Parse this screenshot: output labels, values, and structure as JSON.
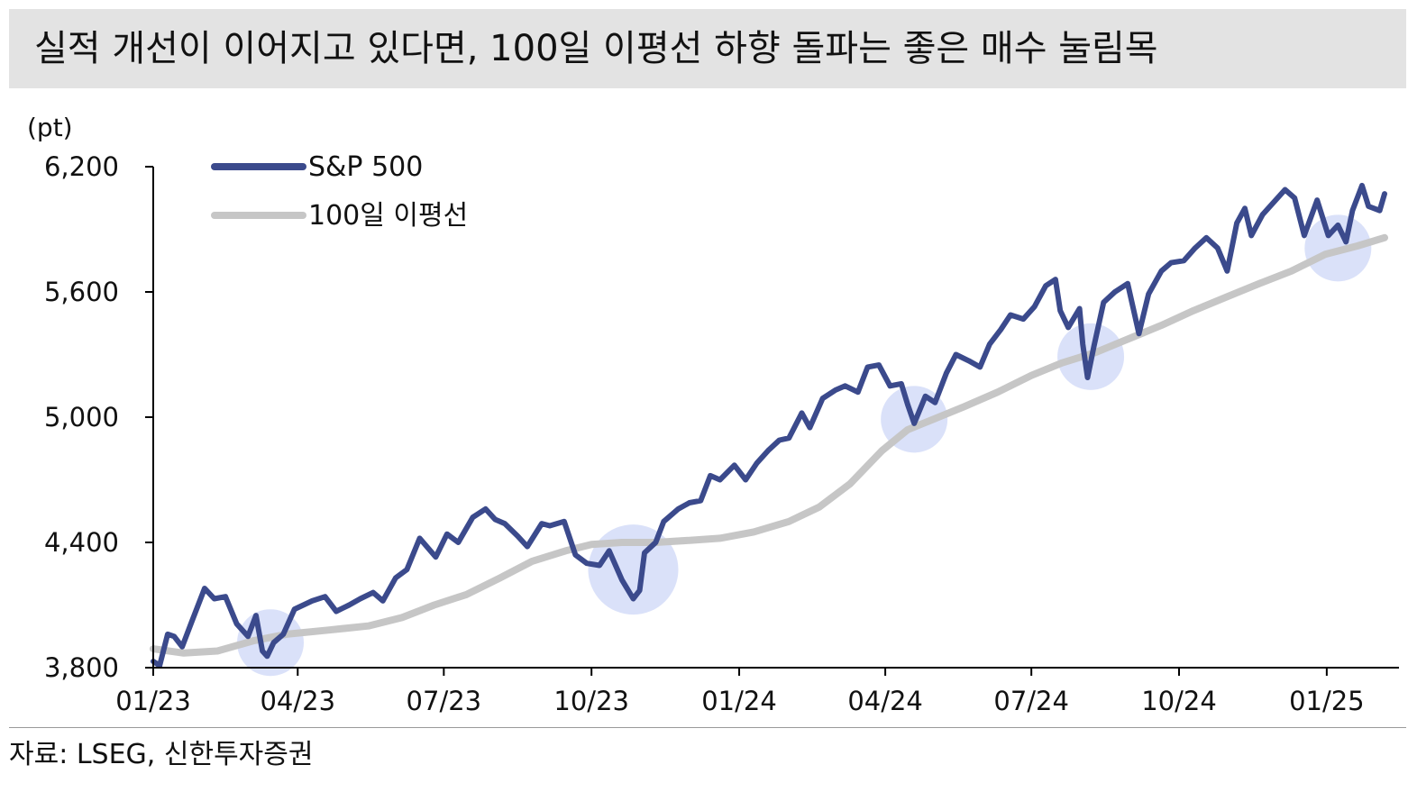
{
  "title": "실적 개선이 이어지고 있다면, 100일 이평선 하향 돌파는 좋은 매수 눌림목",
  "source": "자료: LSEG, 신한투자증권",
  "colors": {
    "sp500": "#3b4a8c",
    "ma100": "#c6c6c6",
    "highlight": "#d3dcf8",
    "axis": "#000000",
    "title_bg": "#e3e3e3"
  },
  "chart_data": {
    "type": "line",
    "ylabel": "(pt)",
    "ylim": [
      3800,
      6200
    ],
    "yticks": [
      3800,
      4400,
      5000,
      5600,
      6200
    ],
    "ytick_labels": [
      "3,800",
      "4,400",
      "5,000",
      "5,600",
      "6,200"
    ],
    "xlim": [
      "2023-01-01",
      "2025-02-15"
    ],
    "xticks": [
      "2023-01-01",
      "2023-04-01",
      "2023-07-01",
      "2023-10-01",
      "2024-01-01",
      "2024-04-01",
      "2024-07-01",
      "2024-10-01",
      "2025-01-01"
    ],
    "xtick_labels": [
      "01/23",
      "04/23",
      "07/23",
      "10/23",
      "01/24",
      "04/24",
      "07/24",
      "10/24",
      "01/25"
    ],
    "legend": {
      "position": "top-left",
      "entries": [
        "S&P 500",
        "100일 이평선"
      ]
    },
    "series": [
      {
        "name": "S&P 500",
        "color": "#3b4a8c",
        "points": [
          [
            "2023-01-01",
            3830
          ],
          [
            "2023-01-05",
            3810
          ],
          [
            "2023-01-10",
            3960
          ],
          [
            "2023-01-14",
            3950
          ],
          [
            "2023-01-19",
            3900
          ],
          [
            "2023-01-25",
            4020
          ],
          [
            "2023-02-02",
            4180
          ],
          [
            "2023-02-08",
            4130
          ],
          [
            "2023-02-15",
            4140
          ],
          [
            "2023-02-22",
            4010
          ],
          [
            "2023-03-01",
            3950
          ],
          [
            "2023-03-06",
            4050
          ],
          [
            "2023-03-10",
            3880
          ],
          [
            "2023-03-13",
            3855
          ],
          [
            "2023-03-17",
            3920
          ],
          [
            "2023-03-23",
            3960
          ],
          [
            "2023-03-30",
            4080
          ],
          [
            "2023-04-10",
            4120
          ],
          [
            "2023-04-18",
            4140
          ],
          [
            "2023-04-25",
            4070
          ],
          [
            "2023-05-03",
            4100
          ],
          [
            "2023-05-10",
            4130
          ],
          [
            "2023-05-18",
            4160
          ],
          [
            "2023-05-24",
            4120
          ],
          [
            "2023-06-01",
            4230
          ],
          [
            "2023-06-08",
            4270
          ],
          [
            "2023-06-16",
            4420
          ],
          [
            "2023-06-26",
            4330
          ],
          [
            "2023-07-03",
            4440
          ],
          [
            "2023-07-10",
            4400
          ],
          [
            "2023-07-19",
            4520
          ],
          [
            "2023-07-27",
            4560
          ],
          [
            "2023-08-02",
            4510
          ],
          [
            "2023-08-08",
            4490
          ],
          [
            "2023-08-16",
            4430
          ],
          [
            "2023-08-22",
            4380
          ],
          [
            "2023-08-31",
            4490
          ],
          [
            "2023-09-05",
            4480
          ],
          [
            "2023-09-14",
            4500
          ],
          [
            "2023-09-21",
            4340
          ],
          [
            "2023-09-28",
            4300
          ],
          [
            "2023-10-06",
            4290
          ],
          [
            "2023-10-12",
            4360
          ],
          [
            "2023-10-20",
            4220
          ],
          [
            "2023-10-27",
            4130
          ],
          [
            "2023-10-31",
            4170
          ],
          [
            "2023-11-03",
            4350
          ],
          [
            "2023-11-10",
            4400
          ],
          [
            "2023-11-15",
            4500
          ],
          [
            "2023-11-24",
            4560
          ],
          [
            "2023-12-01",
            4590
          ],
          [
            "2023-12-08",
            4600
          ],
          [
            "2023-12-14",
            4720
          ],
          [
            "2023-12-20",
            4700
          ],
          [
            "2023-12-29",
            4770
          ],
          [
            "2024-01-05",
            4700
          ],
          [
            "2024-01-12",
            4780
          ],
          [
            "2024-01-19",
            4840
          ],
          [
            "2024-01-26",
            4890
          ],
          [
            "2024-02-01",
            4900
          ],
          [
            "2024-02-09",
            5020
          ],
          [
            "2024-02-14",
            4950
          ],
          [
            "2024-02-22",
            5090
          ],
          [
            "2024-03-01",
            5130
          ],
          [
            "2024-03-07",
            5150
          ],
          [
            "2024-03-15",
            5120
          ],
          [
            "2024-03-21",
            5240
          ],
          [
            "2024-03-28",
            5250
          ],
          [
            "2024-04-04",
            5150
          ],
          [
            "2024-04-11",
            5160
          ],
          [
            "2024-04-15",
            5060
          ],
          [
            "2024-04-19",
            4970
          ],
          [
            "2024-04-26",
            5100
          ],
          [
            "2024-05-02",
            5070
          ],
          [
            "2024-05-09",
            5210
          ],
          [
            "2024-05-15",
            5300
          ],
          [
            "2024-05-23",
            5270
          ],
          [
            "2024-05-30",
            5240
          ],
          [
            "2024-06-05",
            5350
          ],
          [
            "2024-06-12",
            5420
          ],
          [
            "2024-06-18",
            5490
          ],
          [
            "2024-06-26",
            5470
          ],
          [
            "2024-07-03",
            5530
          ],
          [
            "2024-07-10",
            5630
          ],
          [
            "2024-07-16",
            5660
          ],
          [
            "2024-07-19",
            5510
          ],
          [
            "2024-07-24",
            5430
          ],
          [
            "2024-07-31",
            5520
          ],
          [
            "2024-08-02",
            5350
          ],
          [
            "2024-08-05",
            5190
          ],
          [
            "2024-08-09",
            5340
          ],
          [
            "2024-08-15",
            5550
          ],
          [
            "2024-08-22",
            5600
          ],
          [
            "2024-08-30",
            5640
          ],
          [
            "2024-09-06",
            5400
          ],
          [
            "2024-09-12",
            5590
          ],
          [
            "2024-09-20",
            5700
          ],
          [
            "2024-09-26",
            5740
          ],
          [
            "2024-10-04",
            5750
          ],
          [
            "2024-10-11",
            5810
          ],
          [
            "2024-10-18",
            5860
          ],
          [
            "2024-10-25",
            5810
          ],
          [
            "2024-10-31",
            5700
          ],
          [
            "2024-11-06",
            5930
          ],
          [
            "2024-11-11",
            6000
          ],
          [
            "2024-11-15",
            5870
          ],
          [
            "2024-11-22",
            5970
          ],
          [
            "2024-11-29",
            6030
          ],
          [
            "2024-12-06",
            6090
          ],
          [
            "2024-12-12",
            6050
          ],
          [
            "2024-12-18",
            5870
          ],
          [
            "2024-12-26",
            6040
          ],
          [
            "2025-01-02",
            5870
          ],
          [
            "2025-01-08",
            5920
          ],
          [
            "2025-01-13",
            5840
          ],
          [
            "2025-01-17",
            5990
          ],
          [
            "2025-01-23",
            6110
          ],
          [
            "2025-01-27",
            6010
          ],
          [
            "2025-02-03",
            5990
          ],
          [
            "2025-02-06",
            6070
          ]
        ]
      },
      {
        "name": "100일 이평선",
        "color": "#c6c6c6",
        "points": [
          [
            "2023-01-01",
            3890
          ],
          [
            "2023-01-20",
            3870
          ],
          [
            "2023-02-10",
            3880
          ],
          [
            "2023-03-05",
            3930
          ],
          [
            "2023-03-25",
            3960
          ],
          [
            "2023-04-20",
            3980
          ],
          [
            "2023-05-15",
            4000
          ],
          [
            "2023-06-05",
            4040
          ],
          [
            "2023-06-25",
            4100
          ],
          [
            "2023-07-15",
            4150
          ],
          [
            "2023-08-05",
            4230
          ],
          [
            "2023-08-25",
            4310
          ],
          [
            "2023-09-15",
            4360
          ],
          [
            "2023-10-01",
            4390
          ],
          [
            "2023-10-20",
            4400
          ],
          [
            "2023-11-10",
            4400
          ],
          [
            "2023-12-01",
            4410
          ],
          [
            "2023-12-20",
            4420
          ],
          [
            "2024-01-10",
            4450
          ],
          [
            "2024-02-01",
            4500
          ],
          [
            "2024-02-20",
            4570
          ],
          [
            "2024-03-10",
            4680
          ],
          [
            "2024-03-30",
            4840
          ],
          [
            "2024-04-15",
            4940
          ],
          [
            "2024-05-01",
            4990
          ],
          [
            "2024-05-20",
            5050
          ],
          [
            "2024-06-10",
            5120
          ],
          [
            "2024-07-01",
            5200
          ],
          [
            "2024-07-20",
            5260
          ],
          [
            "2024-08-10",
            5310
          ],
          [
            "2024-09-01",
            5380
          ],
          [
            "2024-09-20",
            5440
          ],
          [
            "2024-10-10",
            5510
          ],
          [
            "2024-11-01",
            5580
          ],
          [
            "2024-11-20",
            5640
          ],
          [
            "2024-12-10",
            5700
          ],
          [
            "2024-12-31",
            5780
          ],
          [
            "2025-01-20",
            5820
          ],
          [
            "2025-02-06",
            5860
          ]
        ]
      }
    ],
    "highlighted_periods": [
      {
        "x": "2023-03-15",
        "y": 3920
      },
      {
        "x": "2023-10-27",
        "y": 4270
      },
      {
        "x": "2024-04-19",
        "y": 4990
      },
      {
        "x": "2024-08-07",
        "y": 5290
      },
      {
        "x": "2025-01-08",
        "y": 5810
      }
    ]
  }
}
